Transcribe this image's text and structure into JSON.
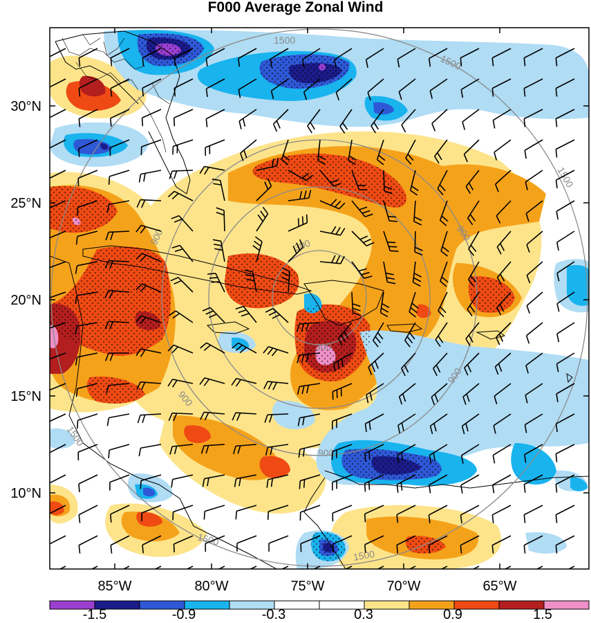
{
  "title": "F000 Average Zonal Wind",
  "map": {
    "lat_labels": [
      "30°N",
      "25°N",
      "20°N",
      "15°N",
      "10°N"
    ],
    "lon_labels": [
      "85°W",
      "80°W",
      "75°W",
      "70°W",
      "65°W"
    ],
    "ring_labels": [
      "300",
      "300",
      "900",
      "900",
      "900",
      "900",
      "900",
      "1500",
      "1500",
      "1500",
      "1500",
      "1500",
      "1500"
    ]
  },
  "colorbar": {
    "colors": [
      "#9b3fd1",
      "#1b1b8a",
      "#2e58d6",
      "#19b3ee",
      "#b0dcf4",
      "#ffffff",
      "#ffffff",
      "#fde48a",
      "#f5a21b",
      "#ef4a13",
      "#b31e1e",
      "#f090c8"
    ],
    "labels": [
      "-1.5",
      "-0.9",
      "-0.3",
      "0.3",
      "0.9",
      "1.5"
    ]
  },
  "colors": {
    "strong_neg": "#1b1b8a",
    "mid_neg": "#2e58d6",
    "light_neg": "#19b3ee",
    "pale_neg": "#b0dcf4",
    "pale_pos": "#fde48a",
    "mid_pos": "#f5a21b",
    "strong_pos": "#ef4a13",
    "dark_pos": "#b31e1e",
    "extreme_pos": "#f090c8",
    "extreme_neg": "#9b3fd1"
  }
}
